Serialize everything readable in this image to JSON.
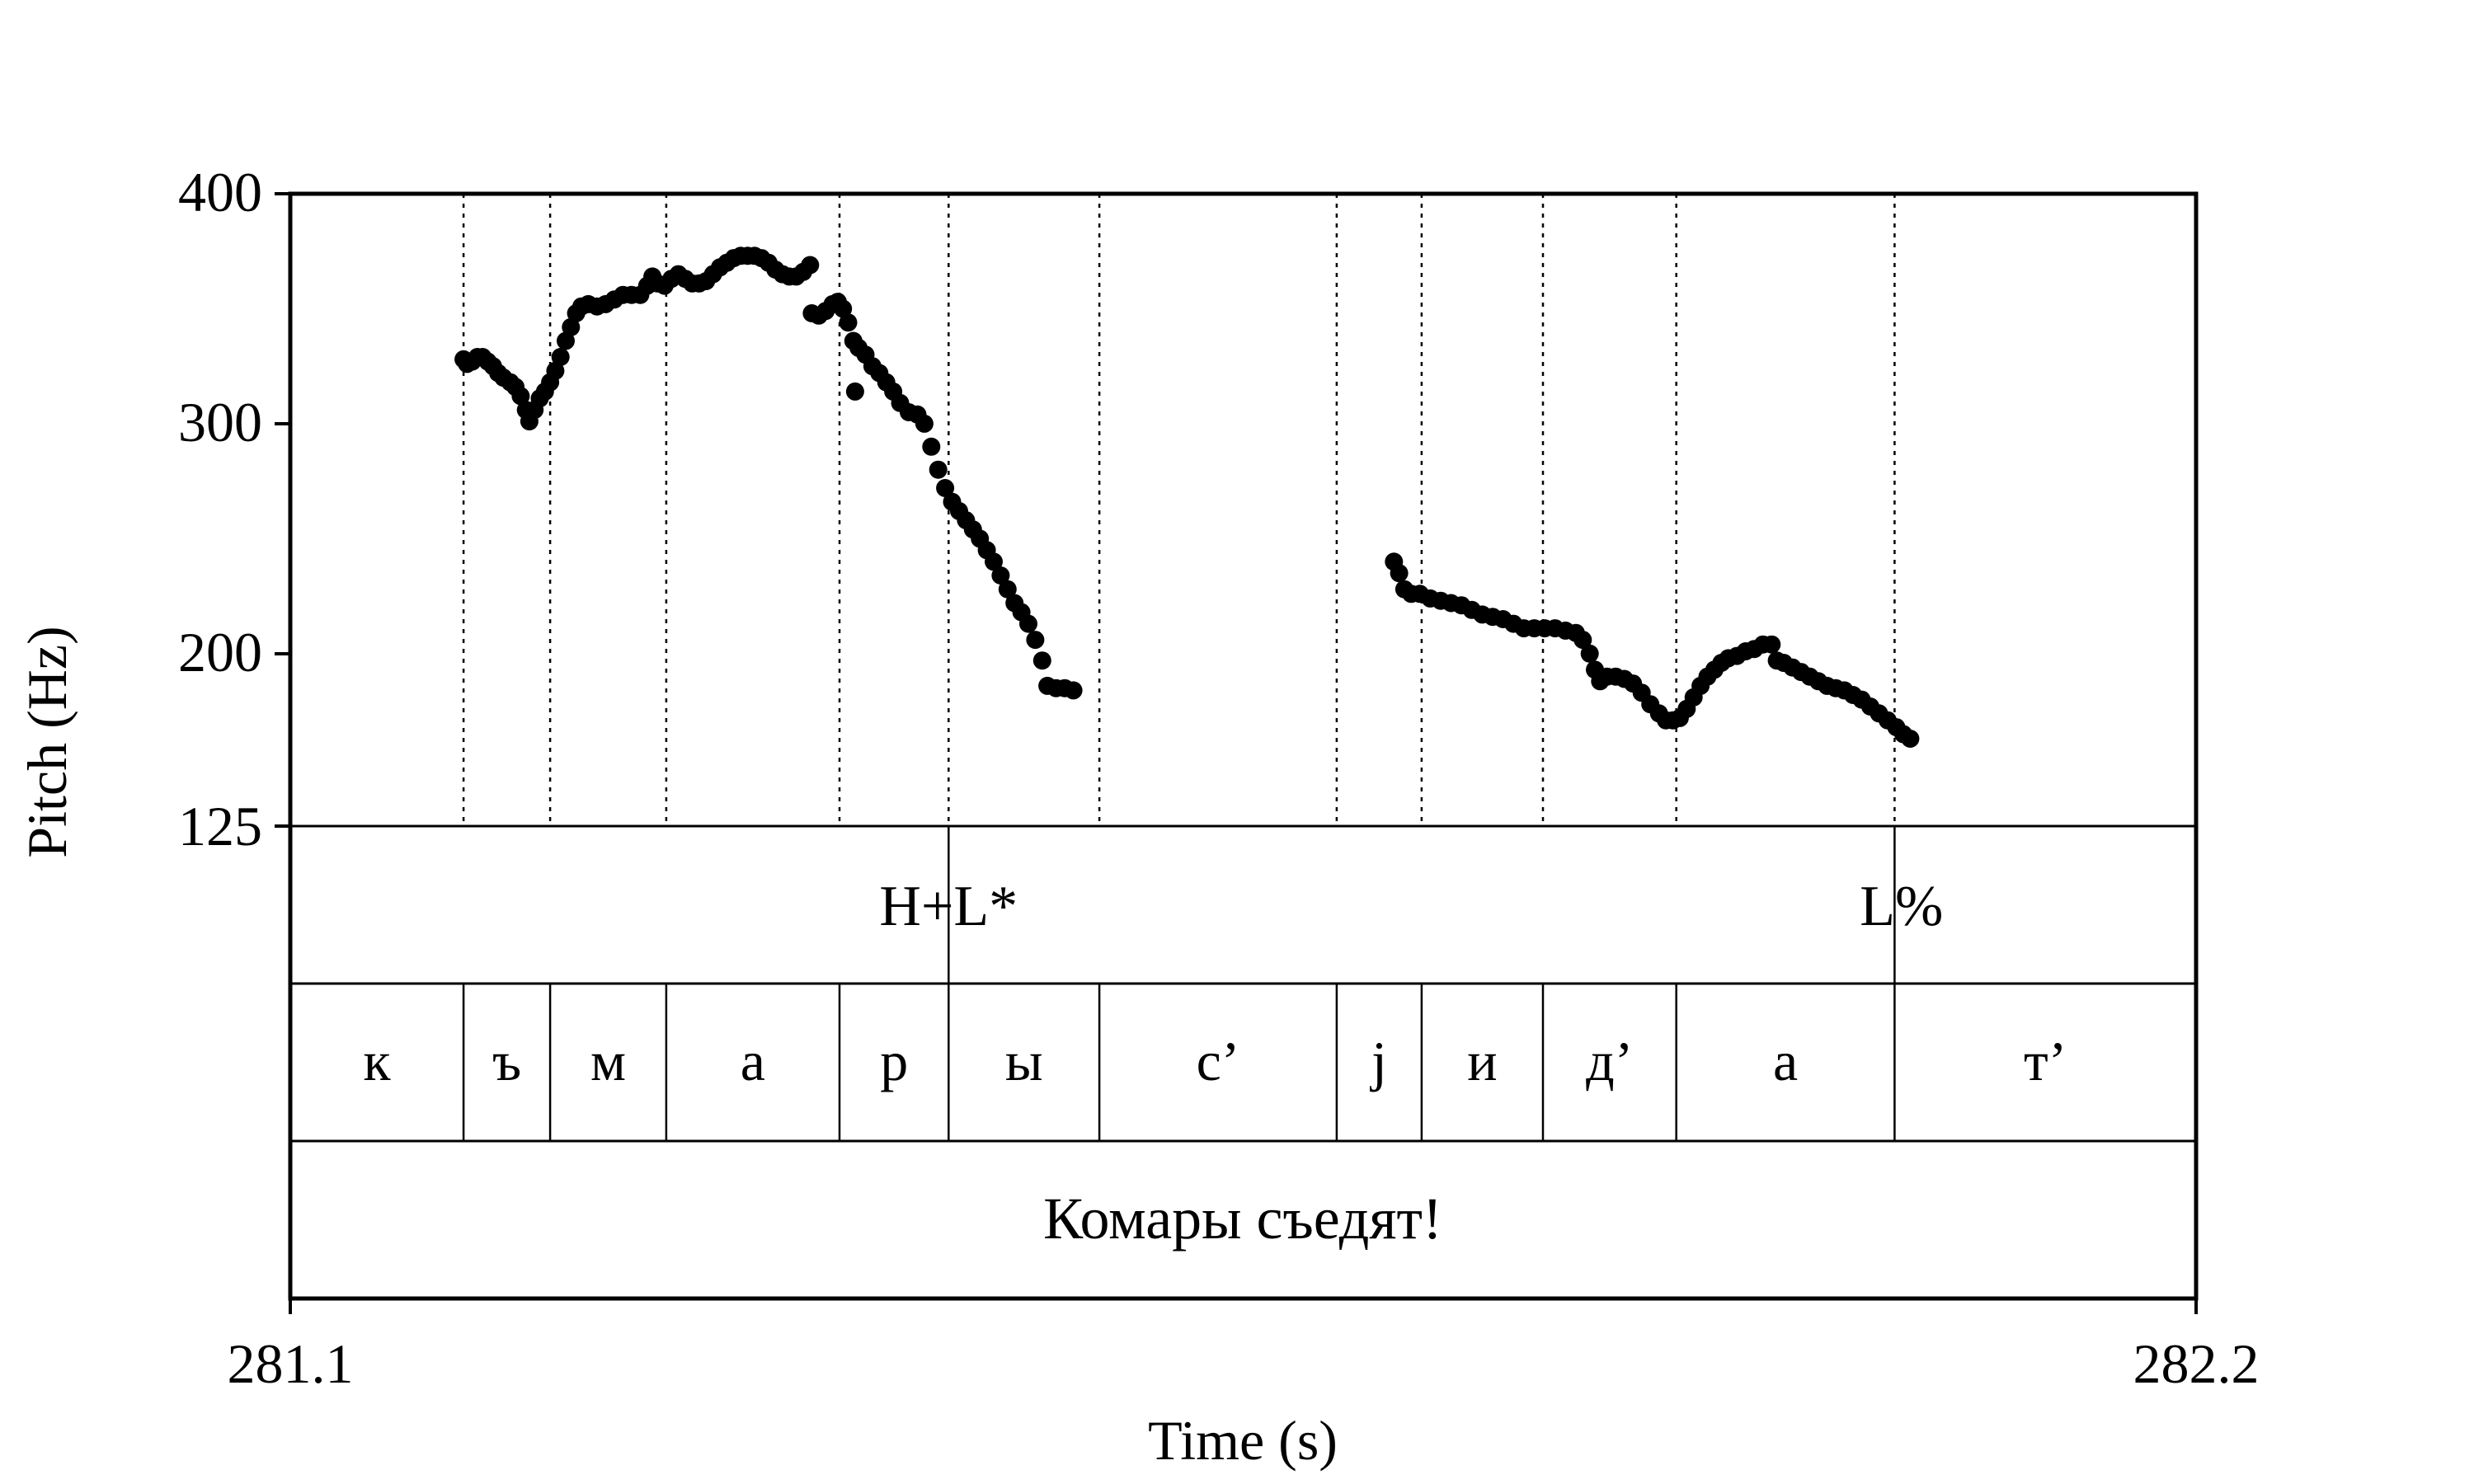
{
  "chart_data": {
    "type": "scatter",
    "title": "",
    "xlabel": "Time (s)",
    "ylabel": "Pitch (Hz)",
    "xlim": [
      281.1,
      282.2
    ],
    "ylim": [
      125,
      400
    ],
    "x_ticks": [
      "281.1",
      "282.2"
    ],
    "y_ticks": [
      {
        "value": 400,
        "label": "400"
      },
      {
        "value": 300,
        "label": "300"
      },
      {
        "value": 200,
        "label": "200"
      },
      {
        "value": 125,
        "label": "125"
      }
    ],
    "grid": false,
    "series": [
      {
        "points": [
          [
            281.2,
            328
          ],
          [
            281.202,
            326
          ],
          [
            281.205,
            327
          ],
          [
            281.208,
            329
          ],
          [
            281.211,
            329
          ],
          [
            281.214,
            327
          ],
          [
            281.217,
            325
          ],
          [
            281.22,
            322
          ],
          [
            281.223,
            320
          ],
          [
            281.227,
            318
          ],
          [
            281.23,
            316
          ],
          [
            281.233,
            312
          ],
          [
            281.236,
            306
          ],
          [
            281.238,
            301
          ],
          [
            281.241,
            306
          ],
          [
            281.244,
            311
          ],
          [
            281.247,
            314
          ],
          [
            281.25,
            318
          ],
          [
            281.253,
            323
          ],
          [
            281.256,
            329
          ],
          [
            281.259,
            336
          ],
          [
            281.262,
            342
          ],
          [
            281.265,
            348
          ],
          [
            281.268,
            351
          ],
          [
            281.272,
            352
          ],
          [
            281.277,
            351
          ],
          [
            281.282,
            352
          ],
          [
            281.287,
            354
          ],
          [
            281.292,
            356
          ],
          [
            281.297,
            356
          ],
          [
            281.302,
            356
          ],
          [
            281.306,
            360
          ],
          [
            281.309,
            364
          ],
          [
            281.312,
            361
          ],
          [
            281.316,
            360
          ],
          [
            281.32,
            363
          ],
          [
            281.324,
            365
          ],
          [
            281.328,
            363
          ],
          [
            281.332,
            361
          ],
          [
            281.336,
            361
          ],
          [
            281.34,
            362
          ],
          [
            281.344,
            365
          ],
          [
            281.348,
            368
          ],
          [
            281.352,
            370
          ],
          [
            281.356,
            372
          ],
          [
            281.36,
            373
          ],
          [
            281.364,
            373
          ],
          [
            281.368,
            373
          ],
          [
            281.372,
            372
          ],
          [
            281.376,
            370
          ],
          [
            281.38,
            367
          ],
          [
            281.384,
            365
          ],
          [
            281.388,
            364
          ],
          [
            281.392,
            364
          ],
          [
            281.396,
            366
          ],
          [
            281.4,
            369
          ],
          [
            281.401,
            348
          ],
          [
            281.405,
            347
          ],
          [
            281.409,
            349
          ],
          [
            281.413,
            352
          ],
          [
            281.416,
            353
          ],
          [
            281.419,
            350
          ],
          [
            281.422,
            344
          ],
          [
            281.425,
            336
          ],
          [
            281.426,
            314
          ],
          [
            281.428,
            333
          ],
          [
            281.432,
            330
          ],
          [
            281.436,
            325
          ],
          [
            281.44,
            322
          ],
          [
            281.444,
            318
          ],
          [
            281.448,
            314
          ],
          [
            281.452,
            309
          ],
          [
            281.457,
            305
          ],
          [
            281.462,
            304
          ],
          [
            281.466,
            300
          ],
          [
            281.47,
            290
          ],
          [
            281.474,
            280
          ],
          [
            281.478,
            272
          ],
          [
            281.482,
            266
          ],
          [
            281.486,
            262
          ],
          [
            281.49,
            258
          ],
          [
            281.494,
            254
          ],
          [
            281.498,
            250
          ],
          [
            281.502,
            245
          ],
          [
            281.506,
            240
          ],
          [
            281.51,
            234
          ],
          [
            281.514,
            228
          ],
          [
            281.518,
            222
          ],
          [
            281.522,
            218
          ],
          [
            281.526,
            213
          ],
          [
            281.53,
            206
          ],
          [
            281.534,
            197
          ],
          [
            281.537,
            186
          ],
          [
            281.542,
            185
          ],
          [
            281.547,
            185
          ],
          [
            281.552,
            184
          ],
          [
            281.737,
            240
          ],
          [
            281.74,
            235
          ],
          [
            281.743,
            228
          ],
          [
            281.747,
            226
          ],
          [
            281.752,
            226
          ],
          [
            281.758,
            224
          ],
          [
            281.764,
            223
          ],
          [
            281.77,
            222
          ],
          [
            281.776,
            221
          ],
          [
            281.782,
            219
          ],
          [
            281.788,
            217
          ],
          [
            281.794,
            216
          ],
          [
            281.8,
            215
          ],
          [
            281.806,
            213
          ],
          [
            281.812,
            211
          ],
          [
            281.818,
            211
          ],
          [
            281.824,
            211
          ],
          [
            281.83,
            211
          ],
          [
            281.836,
            210
          ],
          [
            281.842,
            209
          ],
          [
            281.846,
            206
          ],
          [
            281.85,
            200
          ],
          [
            281.853,
            193
          ],
          [
            281.856,
            188
          ],
          [
            281.86,
            190
          ],
          [
            281.865,
            190
          ],
          [
            281.87,
            189
          ],
          [
            281.875,
            187
          ],
          [
            281.88,
            183
          ],
          [
            281.885,
            178
          ],
          [
            281.89,
            174
          ],
          [
            281.894,
            171
          ],
          [
            281.898,
            171
          ],
          [
            281.902,
            172
          ],
          [
            281.906,
            176
          ],
          [
            281.91,
            181
          ],
          [
            281.914,
            186
          ],
          [
            281.918,
            190
          ],
          [
            281.922,
            193
          ],
          [
            281.926,
            196
          ],
          [
            281.93,
            198
          ],
          [
            281.935,
            199
          ],
          [
            281.94,
            201
          ],
          [
            281.945,
            202
          ],
          [
            281.95,
            204
          ],
          [
            281.955,
            204
          ],
          [
            281.958,
            197
          ],
          [
            281.962,
            196
          ],
          [
            281.967,
            194
          ],
          [
            281.972,
            192
          ],
          [
            281.977,
            190
          ],
          [
            281.982,
            188
          ],
          [
            281.987,
            186
          ],
          [
            281.992,
            185
          ],
          [
            281.997,
            184
          ],
          [
            282.002,
            182
          ],
          [
            282.007,
            180
          ],
          [
            282.012,
            177
          ],
          [
            282.017,
            174
          ],
          [
            282.022,
            171
          ],
          [
            282.027,
            168
          ],
          [
            282.031,
            165
          ],
          [
            282.035,
            163
          ]
        ]
      }
    ]
  },
  "tone_tier": {
    "labels": [
      {
        "text": "H+L*",
        "t": 281.48
      },
      {
        "text": "L%",
        "t": 282.03
      }
    ],
    "marks": [
      281.48,
      282.026
    ]
  },
  "segment_tier": {
    "boundaries": [
      281.2,
      281.25,
      281.317,
      281.417,
      281.48,
      281.567,
      281.704,
      281.753,
      281.823,
      281.9,
      282.026
    ],
    "segments": [
      "к",
      "ъ",
      "м",
      "а",
      "р",
      "ы",
      "с’",
      "j",
      "и",
      "д’",
      "а",
      "т’"
    ]
  },
  "sentence_tier": {
    "text": "Комары съедят!"
  }
}
